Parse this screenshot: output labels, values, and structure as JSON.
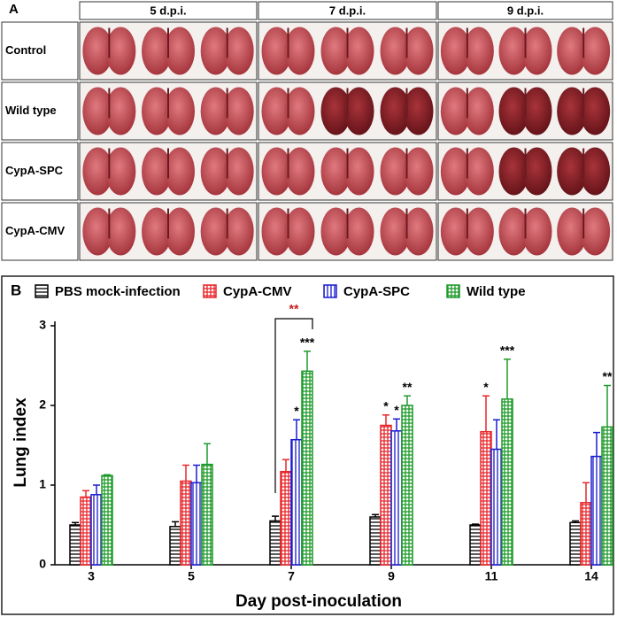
{
  "panel_a": {
    "label": "A",
    "columns": [
      "5 d.p.i.",
      "7 d.p.i.",
      "9 d.p.i."
    ],
    "rows": [
      "Control",
      "Wild type",
      "CypA-SPC",
      "CypA-CMV"
    ]
  },
  "chart_data": {
    "type": "bar",
    "panel_label": "B",
    "x_label": "Day post-inoculation",
    "y_label": "Lung index",
    "categories": [
      "3",
      "5",
      "7",
      "9",
      "11",
      "14"
    ],
    "series": [
      {
        "name": "PBS mock-infection",
        "color": "#000000",
        "hatch": "horizontal",
        "values": [
          0.5,
          0.48,
          0.55,
          0.6,
          0.5,
          0.53
        ],
        "errors": [
          0.03,
          0.06,
          0.06,
          0.03,
          0.01,
          0.02
        ],
        "annotations": [
          null,
          null,
          null,
          null,
          null,
          null
        ]
      },
      {
        "name": "CypA-CMV",
        "color": "#e8262a",
        "hatch": "cross",
        "values": [
          0.85,
          1.05,
          1.17,
          1.75,
          1.67,
          0.78
        ],
        "errors": [
          0.08,
          0.2,
          0.15,
          0.13,
          0.45,
          0.25
        ],
        "annotations": [
          null,
          null,
          null,
          "*",
          "*",
          null
        ]
      },
      {
        "name": "CypA-SPC",
        "color": "#1a1ad0",
        "hatch": "vertical",
        "values": [
          0.88,
          1.03,
          1.57,
          1.68,
          1.45,
          1.36
        ],
        "errors": [
          0.12,
          0.22,
          0.25,
          0.15,
          0.37,
          0.3
        ],
        "annotations": [
          null,
          null,
          "*",
          "*",
          null,
          null
        ]
      },
      {
        "name": "Wild type",
        "color": "#1e9a2a",
        "hatch": "cross",
        "values": [
          1.12,
          1.26,
          2.43,
          2.0,
          2.08,
          1.73
        ],
        "errors": [
          0.01,
          0.26,
          0.25,
          0.12,
          0.5,
          0.52
        ],
        "annotations": [
          null,
          null,
          "***",
          "**",
          "***",
          "**"
        ]
      }
    ],
    "bracket_label": "**",
    "bracket_color": "#c0201e",
    "ylim": [
      0,
      3
    ],
    "yticks": [
      0,
      1,
      2,
      3
    ]
  }
}
